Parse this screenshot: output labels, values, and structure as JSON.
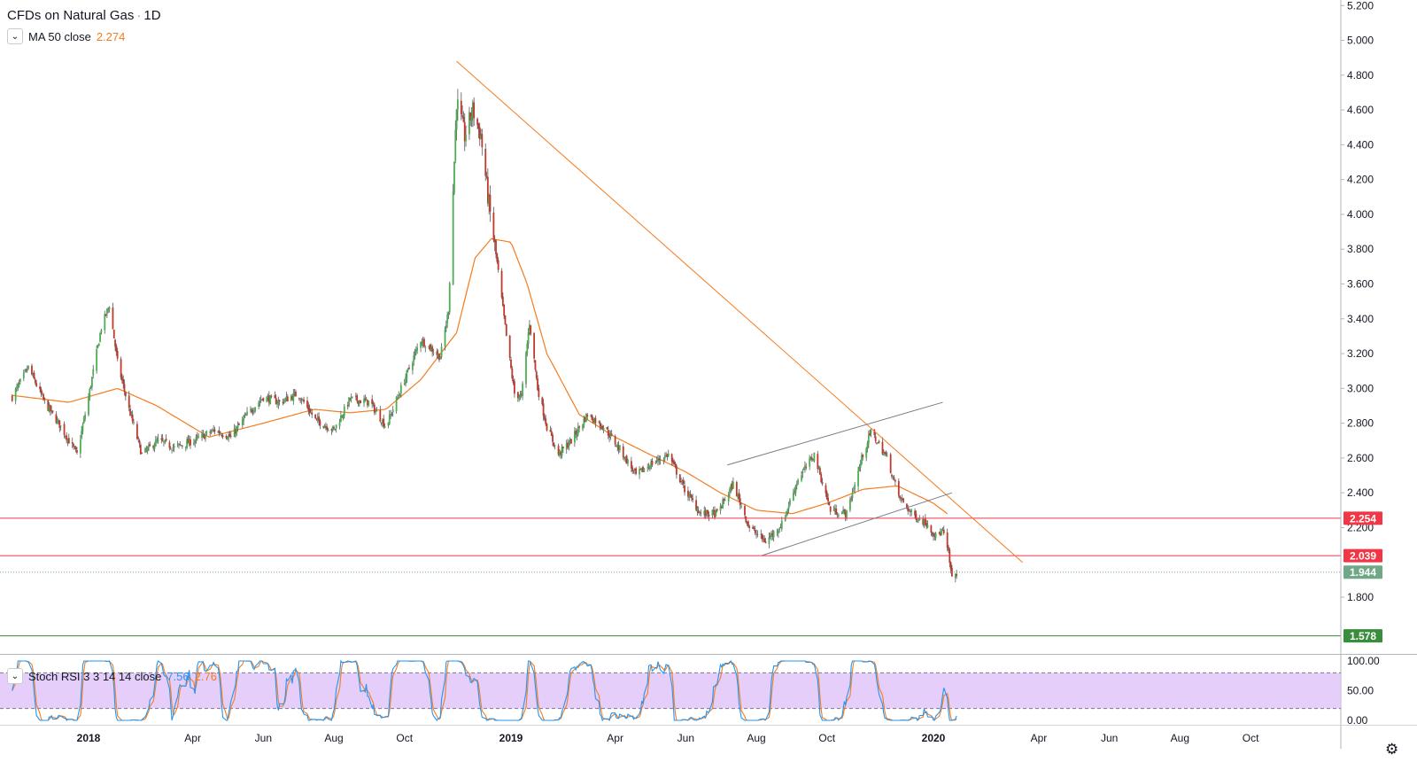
{
  "title": "CFDs on Natural Gas",
  "timeframe": "1D",
  "ma": {
    "label": "MA 50 close",
    "value": "2.274",
    "color": "#f57c1f"
  },
  "stoch": {
    "label": "Stoch RSI 3 3 14 14 close",
    "k": "7.56",
    "d": "2.76",
    "k_color": "#2196f3",
    "d_color": "#f57c1f"
  },
  "colors": {
    "up": "#4caf50",
    "down": "#c0392b",
    "level_red": "#f23645",
    "level_green": "#388e3c",
    "last": "#6fa886",
    "band": "#e1c6f8"
  },
  "settings_icon": "gear-icon",
  "chart_data": {
    "type": "candlestick",
    "symbol": "CFDs on Natural Gas",
    "ylim": [
      1.5,
      5.25
    ],
    "y_ticks": [
      "5.200",
      "5.000",
      "4.800",
      "4.600",
      "4.400",
      "4.200",
      "4.000",
      "3.800",
      "3.600",
      "3.400",
      "3.200",
      "3.000",
      "2.800",
      "2.600",
      "2.400",
      "2.200",
      "1.800"
    ],
    "x_ticks": [
      {
        "label": "2018",
        "date": "2018-01-01"
      },
      {
        "label": "Apr",
        "date": "2018-04-01"
      },
      {
        "label": "Jun",
        "date": "2018-06-01"
      },
      {
        "label": "Aug",
        "date": "2018-08-01"
      },
      {
        "label": "Oct",
        "date": "2018-10-01"
      },
      {
        "label": "2019",
        "date": "2019-01-01"
      },
      {
        "label": "Apr",
        "date": "2019-04-01"
      },
      {
        "label": "Jun",
        "date": "2019-06-01"
      },
      {
        "label": "Aug",
        "date": "2019-08-01"
      },
      {
        "label": "Oct",
        "date": "2019-10-01"
      },
      {
        "label": "2020",
        "date": "2020-01-01"
      },
      {
        "label": "Apr",
        "date": "2020-04-01"
      },
      {
        "label": "Jun",
        "date": "2020-06-01"
      },
      {
        "label": "Aug",
        "date": "2020-08-01"
      },
      {
        "label": "Oct",
        "date": "2020-10-01"
      }
    ],
    "price_anchors": [
      [
        "2017-10-27",
        2.95
      ],
      [
        "2017-11-10",
        3.12
      ],
      [
        "2017-11-24",
        2.92
      ],
      [
        "2017-12-08",
        2.78
      ],
      [
        "2017-12-22",
        2.62
      ],
      [
        "2018-01-01",
        2.95
      ],
      [
        "2018-01-12",
        3.35
      ],
      [
        "2018-01-19",
        3.48
      ],
      [
        "2018-01-26",
        3.15
      ],
      [
        "2018-02-05",
        2.88
      ],
      [
        "2018-02-16",
        2.62
      ],
      [
        "2018-03-02",
        2.7
      ],
      [
        "2018-03-16",
        2.66
      ],
      [
        "2018-04-02",
        2.7
      ],
      [
        "2018-04-20",
        2.76
      ],
      [
        "2018-05-04",
        2.72
      ],
      [
        "2018-05-18",
        2.85
      ],
      [
        "2018-06-01",
        2.95
      ],
      [
        "2018-06-15",
        2.92
      ],
      [
        "2018-07-01",
        2.97
      ],
      [
        "2018-07-16",
        2.82
      ],
      [
        "2018-08-01",
        2.76
      ],
      [
        "2018-08-15",
        2.94
      ],
      [
        "2018-09-01",
        2.92
      ],
      [
        "2018-09-15",
        2.78
      ],
      [
        "2018-10-01",
        3.05
      ],
      [
        "2018-10-15",
        3.28
      ],
      [
        "2018-11-01",
        3.18
      ],
      [
        "2018-11-08",
        3.45
      ],
      [
        "2018-11-15",
        4.65
      ],
      [
        "2018-11-22",
        4.45
      ],
      [
        "2018-11-29",
        4.6
      ],
      [
        "2018-12-06",
        4.45
      ],
      [
        "2018-12-13",
        4.05
      ],
      [
        "2018-12-20",
        3.72
      ],
      [
        "2018-12-28",
        3.3
      ],
      [
        "2019-01-04",
        2.97
      ],
      [
        "2019-01-10",
        2.95
      ],
      [
        "2019-01-17",
        3.38
      ],
      [
        "2019-01-24",
        3.0
      ],
      [
        "2019-02-01",
        2.78
      ],
      [
        "2019-02-11",
        2.62
      ],
      [
        "2019-02-22",
        2.7
      ],
      [
        "2019-03-08",
        2.85
      ],
      [
        "2019-03-22",
        2.78
      ],
      [
        "2019-04-05",
        2.65
      ],
      [
        "2019-04-19",
        2.5
      ],
      [
        "2019-05-03",
        2.57
      ],
      [
        "2019-05-17",
        2.62
      ],
      [
        "2019-05-31",
        2.42
      ],
      [
        "2019-06-14",
        2.28
      ],
      [
        "2019-06-28",
        2.28
      ],
      [
        "2019-07-12",
        2.45
      ],
      [
        "2019-07-26",
        2.2
      ],
      [
        "2019-08-09",
        2.12
      ],
      [
        "2019-08-23",
        2.22
      ],
      [
        "2019-09-06",
        2.48
      ],
      [
        "2019-09-20",
        2.62
      ],
      [
        "2019-10-04",
        2.3
      ],
      [
        "2019-10-18",
        2.28
      ],
      [
        "2019-11-01",
        2.62
      ],
      [
        "2019-11-08",
        2.75
      ],
      [
        "2019-11-22",
        2.6
      ],
      [
        "2019-12-02",
        2.38
      ],
      [
        "2019-12-13",
        2.28
      ],
      [
        "2019-12-27",
        2.22
      ],
      [
        "2020-01-03",
        2.15
      ],
      [
        "2020-01-09",
        2.18
      ],
      [
        "2020-01-14",
        2.05
      ],
      [
        "2020-01-17",
        1.9
      ],
      [
        "2020-01-21",
        1.944
      ]
    ],
    "ma50_anchors": [
      [
        "2017-10-27",
        2.96
      ],
      [
        "2017-12-15",
        2.92
      ],
      [
        "2018-01-26",
        3.0
      ],
      [
        "2018-03-01",
        2.9
      ],
      [
        "2018-04-15",
        2.72
      ],
      [
        "2018-06-01",
        2.8
      ],
      [
        "2018-07-15",
        2.88
      ],
      [
        "2018-08-15",
        2.86
      ],
      [
        "2018-09-15",
        2.88
      ],
      [
        "2018-10-15",
        3.05
      ],
      [
        "2018-11-15",
        3.32
      ],
      [
        "2018-12-01",
        3.75
      ],
      [
        "2018-12-15",
        3.86
      ],
      [
        "2019-01-01",
        3.84
      ],
      [
        "2019-01-15",
        3.6
      ],
      [
        "2019-02-01",
        3.2
      ],
      [
        "2019-03-01",
        2.85
      ],
      [
        "2019-04-01",
        2.72
      ],
      [
        "2019-05-01",
        2.62
      ],
      [
        "2019-06-01",
        2.52
      ],
      [
        "2019-07-01",
        2.4
      ],
      [
        "2019-08-01",
        2.3
      ],
      [
        "2019-09-01",
        2.28
      ],
      [
        "2019-10-01",
        2.34
      ],
      [
        "2019-11-01",
        2.42
      ],
      [
        "2019-12-01",
        2.44
      ],
      [
        "2020-01-01",
        2.34
      ],
      [
        "2020-01-14",
        2.274
      ]
    ],
    "levels": [
      {
        "value": 2.254,
        "label": "2.254",
        "color": "#f23645"
      },
      {
        "value": 2.039,
        "label": "2.039",
        "color": "#f23645"
      },
      {
        "value": 1.578,
        "label": "1.578",
        "color": "#388e3c"
      }
    ],
    "last_price": {
      "value": 1.944,
      "label": "1.944"
    },
    "trendlines": [
      {
        "name": "downtrend-line",
        "from": [
          "2018-11-15",
          4.88
        ],
        "to": [
          "2020-03-18",
          2.0
        ],
        "color": "#f57c1f"
      },
      {
        "name": "channel-upper",
        "from": [
          "2019-07-07",
          2.56
        ],
        "to": [
          "2020-01-09",
          2.92
        ],
        "color": "#787b86"
      },
      {
        "name": "channel-lower",
        "from": [
          "2019-08-06",
          2.04
        ],
        "to": [
          "2020-01-17",
          2.4
        ],
        "color": "#787b86"
      }
    ],
    "stoch_rsi": {
      "ylim": [
        0,
        100
      ],
      "ticks": [
        "100.00",
        "50.00",
        "0.00"
      ],
      "bands": [
        20,
        80
      ],
      "k_value": 7.56,
      "d_value": 2.76
    }
  }
}
